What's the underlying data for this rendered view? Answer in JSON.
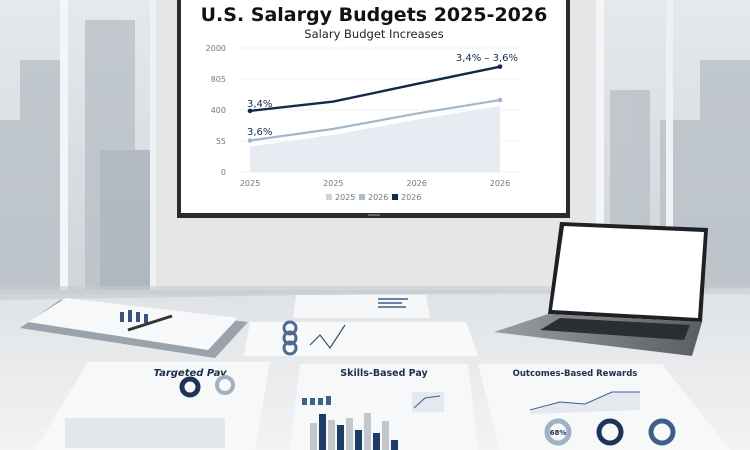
{
  "screen": {
    "title": "U.S. Salargy Budgets 2025-2026",
    "subtitle": "Salary Budget Increases"
  },
  "chart_data": {
    "type": "line",
    "title": "U.S. Salargy Budgets 2025-2026",
    "subtitle": "Salary Budget Increases",
    "categories": [
      "2025",
      "2025",
      "2026",
      "2026"
    ],
    "y_tick_labels": [
      "0",
      "55",
      "400",
      "805",
      "2000"
    ],
    "ylim": [
      0,
      2000
    ],
    "grid": true,
    "legend_position": "bottom",
    "legend": [
      {
        "label": "2025",
        "color": "#c9d6e2"
      },
      {
        "label": "2026",
        "color": "#aabccd"
      },
      {
        "label": "2026",
        "color": "#13294b"
      }
    ],
    "series": [
      {
        "color": "#13294b",
        "values": [
          390,
          510,
          740,
          1280
        ]
      },
      {
        "color": "#a3b7cb",
        "values": [
          60,
          190,
          360,
          530
        ]
      }
    ],
    "annotations": [
      "3,4%",
      "3,6%",
      "3,4% – 3,6%"
    ]
  },
  "documents": {
    "left_title": "Targeted Pay",
    "center_title": "Skills-Based Pay",
    "right_title": "Outcomes-Based Rewards",
    "right_donut_label": "68%"
  },
  "colors": {
    "navy": "#13294b",
    "light_blue": "#a3b7cb",
    "table": "#eceef0"
  }
}
